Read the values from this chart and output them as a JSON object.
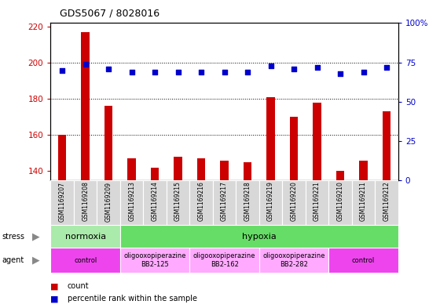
{
  "title": "GDS5067 / 8028016",
  "samples": [
    "GSM1169207",
    "GSM1169208",
    "GSM1169209",
    "GSM1169213",
    "GSM1169214",
    "GSM1169215",
    "GSM1169216",
    "GSM1169217",
    "GSM1169218",
    "GSM1169219",
    "GSM1169220",
    "GSM1169221",
    "GSM1169210",
    "GSM1169211",
    "GSM1169212"
  ],
  "counts": [
    160,
    217,
    176,
    147,
    142,
    148,
    147,
    146,
    145,
    181,
    170,
    178,
    140,
    146,
    173
  ],
  "percentiles": [
    70,
    74,
    71,
    69,
    69,
    69,
    69,
    69,
    69,
    73,
    71,
    72,
    68,
    69,
    72
  ],
  "ylim_left": [
    135,
    222
  ],
  "ylim_right": [
    0,
    100
  ],
  "yticks_left": [
    140,
    160,
    180,
    200,
    220
  ],
  "yticks_right": [
    0,
    25,
    50,
    75,
    100
  ],
  "bar_color": "#cc0000",
  "dot_color": "#0000cc",
  "bar_width": 0.35,
  "stress_row": [
    {
      "label": "normoxia",
      "start": 0,
      "end": 3,
      "color": "#aaeaaa"
    },
    {
      "label": "hypoxia",
      "start": 3,
      "end": 15,
      "color": "#66dd66"
    }
  ],
  "agent_row": [
    {
      "label": "control",
      "start": 0,
      "end": 3,
      "color": "#ee44ee"
    },
    {
      "label": "oligooxopiperazine\nBB2-125",
      "start": 3,
      "end": 6,
      "color": "#ffaaff"
    },
    {
      "label": "oligooxopiperazine\nBB2-162",
      "start": 6,
      "end": 9,
      "color": "#ffaaff"
    },
    {
      "label": "oligooxopiperazine\nBB2-282",
      "start": 9,
      "end": 12,
      "color": "#ffaaff"
    },
    {
      "label": "control",
      "start": 12,
      "end": 15,
      "color": "#ee44ee"
    }
  ],
  "bg_color": "#ffffff",
  "tick_color_left": "#cc0000",
  "tick_color_right": "#0000cc",
  "grid_yticks": [
    160,
    180,
    200
  ]
}
